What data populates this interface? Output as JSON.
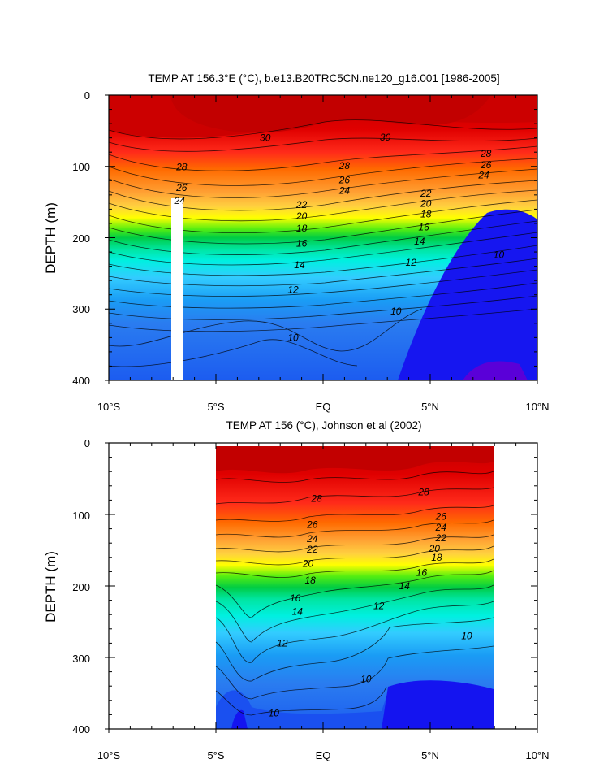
{
  "chart_data": [
    {
      "type": "heatmap",
      "title": "TEMP AT 156.3°E (°C), b.e13.B20TRC5CN.ne120_g16.001 [1986-2005]",
      "xlabel": "",
      "ylabel": "DEPTH (m)",
      "xlim": [
        -10,
        10
      ],
      "ylim": [
        0,
        400
      ],
      "x_ticks": [
        "10°S",
        "5°S",
        "EQ",
        "5°N",
        "10°N"
      ],
      "y_ticks": [
        "0",
        "100",
        "200",
        "300",
        "400"
      ],
      "contour_labels": [
        {
          "text": "30",
          "x": -2.7,
          "y": 60
        },
        {
          "text": "30",
          "x": 2.9,
          "y": 59
        },
        {
          "text": "28",
          "x": -6.6,
          "y": 101
        },
        {
          "text": "28",
          "x": 1.0,
          "y": 99
        },
        {
          "text": "28",
          "x": 7.6,
          "y": 82
        },
        {
          "text": "26",
          "x": -6.6,
          "y": 130
        },
        {
          "text": "26",
          "x": 1.0,
          "y": 119
        },
        {
          "text": "26",
          "x": 7.6,
          "y": 98
        },
        {
          "text": "24",
          "x": -6.7,
          "y": 148
        },
        {
          "text": "24",
          "x": 1.0,
          "y": 134
        },
        {
          "text": "24",
          "x": 7.5,
          "y": 112
        },
        {
          "text": "22",
          "x": -1.0,
          "y": 154
        },
        {
          "text": "22",
          "x": 4.8,
          "y": 138
        },
        {
          "text": "20",
          "x": -1.0,
          "y": 170
        },
        {
          "text": "20",
          "x": 4.8,
          "y": 152
        },
        {
          "text": "18",
          "x": -1.0,
          "y": 187
        },
        {
          "text": "18",
          "x": 4.8,
          "y": 167
        },
        {
          "text": "16",
          "x": -1.0,
          "y": 208
        },
        {
          "text": "16",
          "x": 4.7,
          "y": 185
        },
        {
          "text": "14",
          "x": -1.1,
          "y": 238
        },
        {
          "text": "14",
          "x": 4.5,
          "y": 205
        },
        {
          "text": "12",
          "x": -1.4,
          "y": 273
        },
        {
          "text": "12",
          "x": 4.1,
          "y": 235
        },
        {
          "text": "10",
          "x": -1.4,
          "y": 340
        },
        {
          "text": "10",
          "x": 3.4,
          "y": 303
        },
        {
          "text": "10",
          "x": 8.2,
          "y": 224
        }
      ]
    },
    {
      "type": "heatmap",
      "title": "TEMP AT 156 (°C), Johnson et al (2002)",
      "xlabel": "",
      "ylabel": "DEPTH (m)",
      "xlim": [
        -10,
        10
      ],
      "ylim": [
        0,
        400
      ],
      "x_ticks": [
        "10°S",
        "5°S",
        "EQ",
        "5°N",
        "10°N"
      ],
      "y_ticks": [
        "0",
        "100",
        "200",
        "300",
        "400"
      ],
      "contour_labels": [
        {
          "text": "28",
          "x": -0.3,
          "y": 78
        },
        {
          "text": "28",
          "x": 4.7,
          "y": 69
        },
        {
          "text": "26",
          "x": -0.5,
          "y": 114
        },
        {
          "text": "26",
          "x": 5.5,
          "y": 103
        },
        {
          "text": "24",
          "x": -0.5,
          "y": 134
        },
        {
          "text": "24",
          "x": 5.5,
          "y": 118
        },
        {
          "text": "22",
          "x": -0.5,
          "y": 149
        },
        {
          "text": "22",
          "x": 5.5,
          "y": 133
        },
        {
          "text": "20",
          "x": -0.7,
          "y": 169
        },
        {
          "text": "20",
          "x": 5.2,
          "y": 148
        },
        {
          "text": "18",
          "x": -0.6,
          "y": 192
        },
        {
          "text": "18",
          "x": 5.3,
          "y": 160
        },
        {
          "text": "16",
          "x": -1.3,
          "y": 217
        },
        {
          "text": "16",
          "x": 4.6,
          "y": 181
        },
        {
          "text": "14",
          "x": -1.2,
          "y": 236
        },
        {
          "text": "14",
          "x": 3.8,
          "y": 200
        },
        {
          "text": "12",
          "x": -1.9,
          "y": 280
        },
        {
          "text": "12",
          "x": 2.6,
          "y": 228
        },
        {
          "text": "10",
          "x": 6.7,
          "y": 270
        },
        {
          "text": "10",
          "x": 2.0,
          "y": 330
        },
        {
          "text": "10",
          "x": -2.3,
          "y": 378
        }
      ]
    }
  ]
}
